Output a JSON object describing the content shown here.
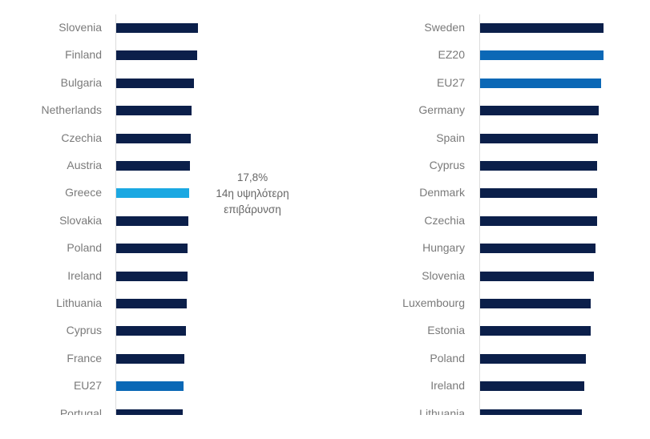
{
  "colors": {
    "default": "#0b1f4a",
    "greece": "#1ba8e2",
    "aggregate": "#0b68b6"
  },
  "chart_data": [
    {
      "type": "bar",
      "orientation": "horizontal",
      "title": "",
      "xlabel": "",
      "ylabel": "",
      "xlim": [
        0,
        20
      ],
      "categories": [
        "Slovenia",
        "Finland",
        "Bulgaria",
        "Netherlands",
        "Czechia",
        "Austria",
        "Greece",
        "Slovakia",
        "Poland",
        "Ireland",
        "Lithuania",
        "Cyprus",
        "France",
        "EU27",
        "Portugal"
      ],
      "values": [
        20.0,
        19.8,
        19.0,
        18.4,
        18.2,
        18.0,
        17.8,
        17.7,
        17.4,
        17.4,
        17.2,
        17.0,
        16.6,
        16.4,
        16.2
      ],
      "highlight": {
        "Greece": "greece",
        "EU27": "aggregate"
      },
      "annotation": {
        "value": "17,8%",
        "line1": "14η υψηλότερη",
        "line2": "επιβάρυνση"
      }
    },
    {
      "type": "bar",
      "orientation": "horizontal",
      "title": "",
      "xlabel": "",
      "ylabel": "",
      "xlim": [
        0,
        100
      ],
      "categories": [
        "Sweden",
        "EZ20",
        "EU27",
        "Germany",
        "Spain",
        "Cyprus",
        "Denmark",
        "Czechia",
        "Hungary",
        "Slovenia",
        "Luxembourg",
        "Estonia",
        "Poland",
        "Ireland",
        "Lithuania"
      ],
      "values": [
        100,
        100,
        98,
        96,
        95.5,
        95,
        95,
        95,
        93.5,
        92,
        89.5,
        89.5,
        86,
        84.5,
        82.5
      ],
      "highlight": {
        "EZ20": "aggregate",
        "EU27": "aggregate"
      }
    }
  ]
}
